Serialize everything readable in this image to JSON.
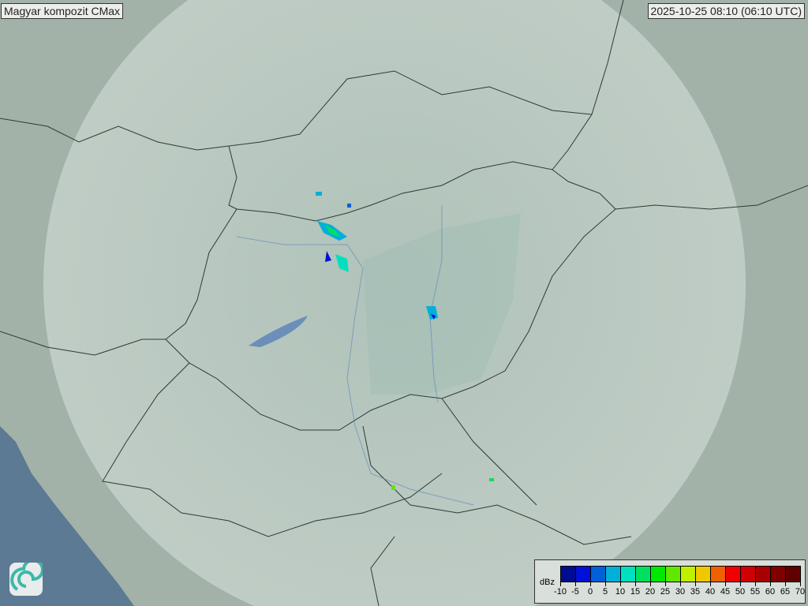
{
  "title": "Magyar kompozit  CMax",
  "timestamp": "2025-10-25 08:10 (06:10 UTC)",
  "legend": {
    "unit": "dBz",
    "ticks": [
      "-10",
      "-5",
      "0",
      "5",
      "10",
      "15",
      "20",
      "25",
      "30",
      "35",
      "40",
      "45",
      "50",
      "55",
      "60",
      "65",
      "70"
    ],
    "colors": [
      "#000c90",
      "#0010d8",
      "#0060d8",
      "#00b0d8",
      "#00e0c0",
      "#00e060",
      "#00e800",
      "#60e800",
      "#c0f000",
      "#f0c800",
      "#f06000",
      "#f00000",
      "#d00000",
      "#a80000",
      "#800000",
      "#600000"
    ]
  },
  "logo": "omsz-swirl-logo",
  "colors": {
    "sea": "#5d7a94",
    "land": "#a3b2a8",
    "radar_coverage": "#c8d6cf"
  }
}
